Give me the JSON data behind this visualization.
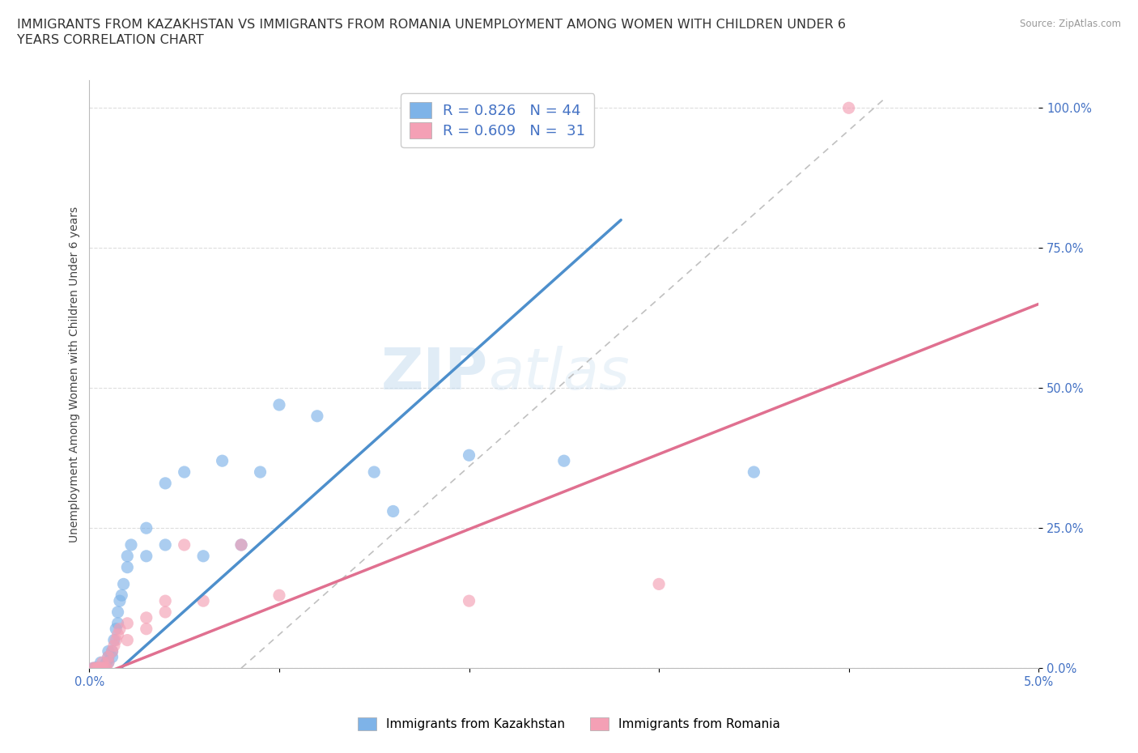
{
  "title_line1": "IMMIGRANTS FROM KAZAKHSTAN VS IMMIGRANTS FROM ROMANIA UNEMPLOYMENT AMONG WOMEN WITH CHILDREN UNDER 6",
  "title_line2": "YEARS CORRELATION CHART",
  "source": "Source: ZipAtlas.com",
  "ylabel": "Unemployment Among Women with Children Under 6 years",
  "xlim": [
    0.0,
    0.05
  ],
  "ylim": [
    0.0,
    1.05
  ],
  "x_ticks": [
    0.0,
    0.01,
    0.02,
    0.03,
    0.04,
    0.05
  ],
  "x_tick_labels": [
    "0.0%",
    "",
    "",
    "",
    "",
    "5.0%"
  ],
  "y_ticks": [
    0.0,
    0.25,
    0.5,
    0.75,
    1.0
  ],
  "y_tick_labels": [
    "0.0%",
    "25.0%",
    "50.0%",
    "75.0%",
    "100.0%"
  ],
  "kaz_color": "#7eb3e8",
  "rom_color": "#f4a0b5",
  "kaz_line_color": "#4d8fcc",
  "rom_line_color": "#e07090",
  "ref_line_color": "#c0c0c0",
  "legend_color": "#4472c4",
  "watermark_text": "ZIP",
  "watermark_text2": "atlas",
  "kaz_scatter": [
    [
      0.0002,
      0.0
    ],
    [
      0.0003,
      0.0
    ],
    [
      0.0003,
      0.0
    ],
    [
      0.0004,
      0.0
    ],
    [
      0.0005,
      0.0
    ],
    [
      0.0005,
      0.0
    ],
    [
      0.0006,
      0.0
    ],
    [
      0.0006,
      0.01
    ],
    [
      0.0007,
      0.0
    ],
    [
      0.0007,
      0.0
    ],
    [
      0.0008,
      0.0
    ],
    [
      0.0008,
      0.0
    ],
    [
      0.0009,
      0.01
    ],
    [
      0.001,
      0.01
    ],
    [
      0.001,
      0.02
    ],
    [
      0.001,
      0.03
    ],
    [
      0.0012,
      0.02
    ],
    [
      0.0012,
      0.03
    ],
    [
      0.0013,
      0.05
    ],
    [
      0.0014,
      0.07
    ],
    [
      0.0015,
      0.08
    ],
    [
      0.0015,
      0.1
    ],
    [
      0.0016,
      0.12
    ],
    [
      0.0017,
      0.13
    ],
    [
      0.0018,
      0.15
    ],
    [
      0.002,
      0.18
    ],
    [
      0.002,
      0.2
    ],
    [
      0.0022,
      0.22
    ],
    [
      0.003,
      0.2
    ],
    [
      0.003,
      0.25
    ],
    [
      0.004,
      0.22
    ],
    [
      0.004,
      0.33
    ],
    [
      0.005,
      0.35
    ],
    [
      0.006,
      0.2
    ],
    [
      0.007,
      0.37
    ],
    [
      0.008,
      0.22
    ],
    [
      0.009,
      0.35
    ],
    [
      0.01,
      0.47
    ],
    [
      0.012,
      0.45
    ],
    [
      0.015,
      0.35
    ],
    [
      0.016,
      0.28
    ],
    [
      0.02,
      0.38
    ],
    [
      0.025,
      0.37
    ],
    [
      0.035,
      0.35
    ]
  ],
  "rom_scatter": [
    [
      0.0002,
      0.0
    ],
    [
      0.0003,
      0.0
    ],
    [
      0.0004,
      0.0
    ],
    [
      0.0005,
      0.0
    ],
    [
      0.0005,
      0.0
    ],
    [
      0.0006,
      0.0
    ],
    [
      0.0006,
      0.0
    ],
    [
      0.0007,
      0.0
    ],
    [
      0.0007,
      0.01
    ],
    [
      0.0008,
      0.0
    ],
    [
      0.0009,
      0.0
    ],
    [
      0.001,
      0.01
    ],
    [
      0.001,
      0.02
    ],
    [
      0.0012,
      0.03
    ],
    [
      0.0013,
      0.04
    ],
    [
      0.0014,
      0.05
    ],
    [
      0.0015,
      0.06
    ],
    [
      0.0016,
      0.07
    ],
    [
      0.002,
      0.05
    ],
    [
      0.002,
      0.08
    ],
    [
      0.003,
      0.07
    ],
    [
      0.003,
      0.09
    ],
    [
      0.004,
      0.1
    ],
    [
      0.004,
      0.12
    ],
    [
      0.005,
      0.22
    ],
    [
      0.006,
      0.12
    ],
    [
      0.008,
      0.22
    ],
    [
      0.01,
      0.13
    ],
    [
      0.02,
      0.12
    ],
    [
      0.03,
      0.15
    ],
    [
      0.04,
      1.0
    ]
  ],
  "background_color": "#ffffff",
  "grid_color": "#dddddd",
  "title_fontsize": 11.5,
  "axis_label_fontsize": 10,
  "tick_fontsize": 10.5
}
